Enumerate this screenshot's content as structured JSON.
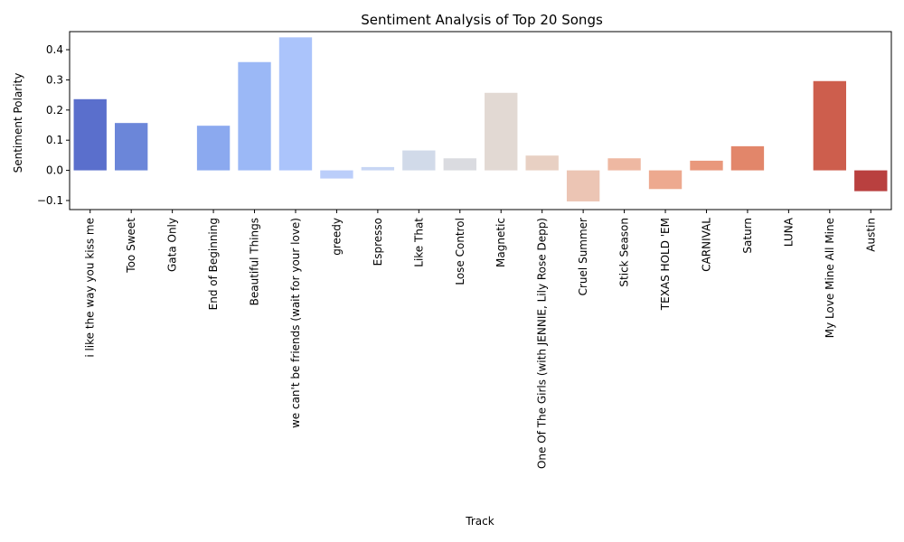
{
  "chart_data": {
    "type": "bar",
    "title": "Sentiment Analysis of Top 20 Songs",
    "xlabel": "Track",
    "ylabel": "Sentiment Polarity",
    "ylim": [
      -0.13,
      0.46
    ],
    "yticks": [
      -0.1,
      0.0,
      0.1,
      0.2,
      0.3,
      0.4
    ],
    "ytick_labels": [
      "−0.1",
      "0.0",
      "0.1",
      "0.2",
      "0.3",
      "0.4"
    ],
    "grid": false,
    "legend": "none",
    "categories": [
      "i like the way you kiss me",
      "Too Sweet",
      "Gata Only",
      "End of Beginning",
      "Beautiful Things",
      "we can't be friends (wait for your love)",
      "greedy",
      "Espresso",
      "Like That",
      "Lose Control",
      "Magnetic",
      "One Of The Girls (with JENNIE, Lily Rose Depp)",
      "Cruel Summer",
      "Stick Season",
      "TEXAS HOLD 'EM",
      "CARNIVAL",
      "Saturn",
      "LUNA",
      "My Love Mine All Mine",
      "Austin"
    ],
    "values": [
      0.236,
      0.157,
      0.0,
      0.148,
      0.359,
      0.441,
      -0.027,
      0.011,
      0.066,
      0.04,
      0.257,
      0.049,
      -0.103,
      0.04,
      -0.062,
      0.032,
      0.08,
      0.0,
      0.296,
      -0.069
    ],
    "colors": [
      "#5a6fcc",
      "#6b86d9",
      "#7b98e5",
      "#8ba9ef",
      "#9bb8f6",
      "#abc4fb",
      "#bbcefa",
      "#c8d6f4",
      "#d1dae9",
      "#dadbe0",
      "#e2d9d3",
      "#e8d0c3",
      "#ecc5b4",
      "#eeb8a2",
      "#eda98f",
      "#e9987c",
      "#e2866a",
      "#d97358",
      "#cd5e4d",
      "#b9403f"
    ]
  }
}
